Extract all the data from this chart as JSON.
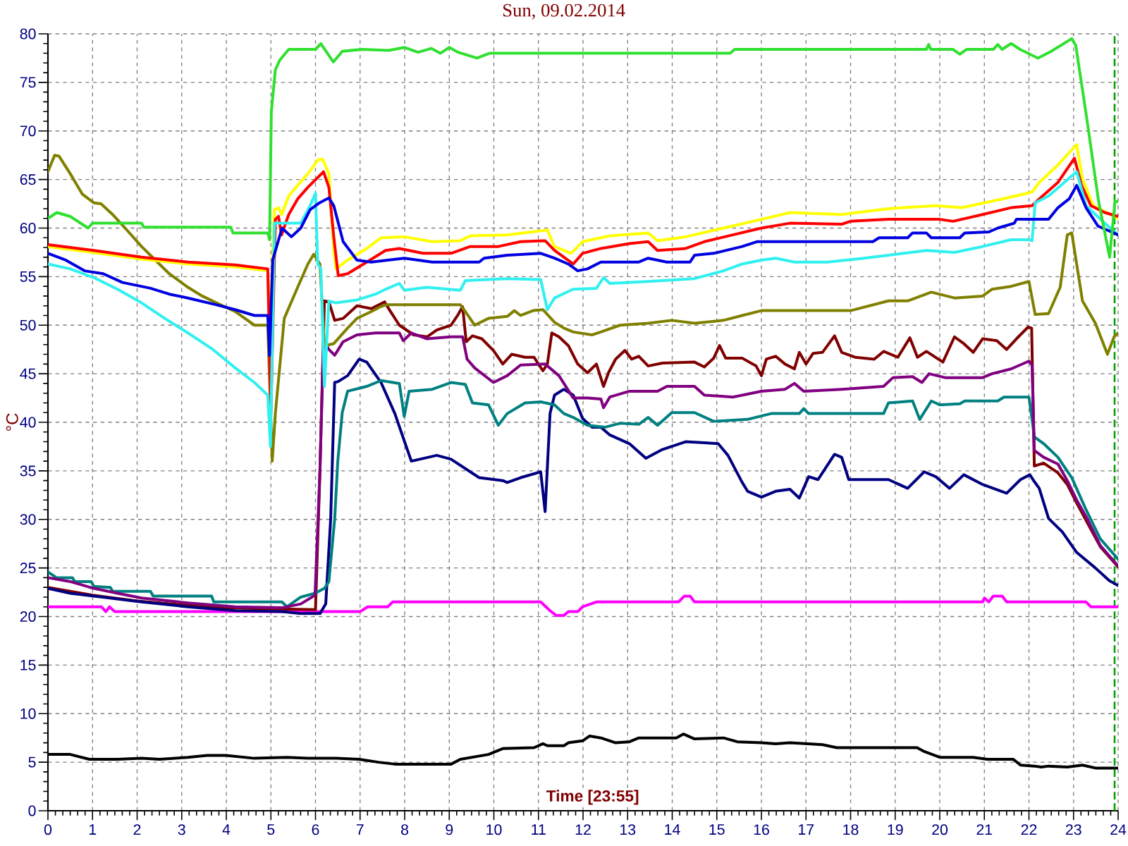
{
  "chart_data": {
    "type": "line",
    "title": "Sun, 09.02.2014",
    "xlabel": "Time [23:55]",
    "ylabel": "°C",
    "xlim": [
      0,
      24
    ],
    "ylim": [
      0,
      80
    ],
    "xticks": [
      0,
      1,
      2,
      3,
      4,
      5,
      6,
      7,
      8,
      9,
      10,
      11,
      12,
      13,
      14,
      15,
      16,
      17,
      18,
      19,
      20,
      21,
      22,
      23,
      24
    ],
    "yticks": [
      0,
      5,
      10,
      15,
      20,
      25,
      30,
      35,
      40,
      45,
      50,
      55,
      60,
      65,
      70,
      75,
      80
    ],
    "grid": true,
    "marker": "none",
    "line_style": "solid",
    "ref_lines": [
      {
        "axis": "x",
        "value": 23.92,
        "color": "#00a000",
        "line_style": "dashed"
      }
    ],
    "series": [
      {
        "color": "#000000",
        "x": [
          0,
          0.5,
          0.93,
          1.56,
          2.1,
          2.5,
          3.14,
          3.57,
          3.99,
          4.63,
          5.36,
          5.83,
          6.46,
          6.98,
          7.41,
          7.78,
          9.04,
          9.25,
          9.88,
          10.2,
          10.9,
          11.1,
          11.2,
          11.57,
          11.67,
          11.99,
          12.15,
          12.4,
          12.73,
          13.04,
          13.25,
          14.09,
          14.25,
          14.5,
          15.15,
          15.46,
          16.0,
          16.32,
          16.64,
          17.37,
          17.69,
          19.49,
          19.65,
          20.0,
          20.75,
          21.07,
          21.65,
          21.81,
          22.12,
          22.28,
          22.44,
          22.86,
          23.2,
          23.49,
          24.0
        ],
        "values": [
          5.8,
          5.8,
          5.3,
          5.3,
          5.4,
          5.3,
          5.5,
          5.7,
          5.7,
          5.4,
          5.5,
          5.4,
          5.4,
          5.3,
          5.0,
          4.8,
          4.8,
          5.3,
          5.8,
          6.4,
          6.5,
          6.9,
          6.7,
          6.7,
          7.0,
          7.2,
          7.7,
          7.5,
          7.0,
          7.1,
          7.5,
          7.5,
          7.9,
          7.4,
          7.5,
          7.1,
          7.0,
          6.9,
          7.0,
          6.8,
          6.5,
          6.5,
          6.1,
          5.5,
          5.5,
          5.3,
          5.3,
          4.7,
          4.6,
          4.5,
          4.6,
          4.5,
          4.7,
          4.4,
          4.4
        ]
      },
      {
        "color": "#ff00ff",
        "x": [
          0,
          1.2,
          1.3,
          1.38,
          1.5,
          7.0,
          7.17,
          7.62,
          7.73,
          11.05,
          11.26,
          11.4,
          11.57,
          11.67,
          11.88,
          11.99,
          12.3,
          14.14,
          14.27,
          14.4,
          14.5,
          20.96,
          21.0,
          21.1,
          21.2,
          21.4,
          21.5,
          23.28,
          23.39,
          24.0
        ],
        "values": [
          21.0,
          21.0,
          20.5,
          21.0,
          20.5,
          20.5,
          21.0,
          21.0,
          21.5,
          21.5,
          20.6,
          20.1,
          20.1,
          20.5,
          20.5,
          21.0,
          21.5,
          21.5,
          22.1,
          22.1,
          21.5,
          21.5,
          21.9,
          21.5,
          22.1,
          22.1,
          21.5,
          21.5,
          21.0,
          21.0
        ]
      },
      {
        "color": "#800000",
        "x": [
          0,
          1.0,
          2.0,
          3.0,
          4.0,
          5.0,
          6.0,
          6.1,
          6.2,
          6.3,
          6.43,
          6.62,
          6.93,
          7.25,
          7.55,
          7.67,
          7.88,
          8.2,
          8.5,
          8.72,
          9.04,
          9.2,
          9.3,
          9.38,
          9.52,
          9.73,
          9.99,
          10.2,
          10.4,
          10.7,
          10.9,
          11.1,
          11.2,
          11.3,
          11.46,
          11.67,
          11.88,
          12.1,
          12.3,
          12.46,
          12.57,
          12.73,
          12.94,
          13.09,
          13.25,
          13.46,
          13.78,
          14.5,
          14.72,
          14.93,
          15.06,
          15.2,
          15.57,
          15.88,
          16.0,
          16.11,
          16.32,
          16.53,
          16.74,
          16.85,
          17.0,
          17.16,
          17.37,
          17.64,
          17.8,
          18.1,
          18.53,
          18.74,
          19.06,
          19.33,
          19.5,
          19.7,
          20.07,
          20.33,
          20.54,
          20.75,
          20.96,
          21.28,
          21.5,
          21.72,
          21.98,
          22.06,
          22.12,
          22.33,
          22.65,
          22.86,
          23.07,
          23.28,
          23.6,
          24.0
        ],
        "values": [
          23.0,
          22.2,
          21.6,
          21.2,
          20.9,
          20.8,
          20.7,
          35.0,
          52.5,
          52.4,
          50.5,
          50.7,
          52.0,
          51.7,
          52.4,
          51.5,
          50.0,
          49.0,
          48.8,
          49.5,
          50.0,
          51.1,
          51.9,
          48.3,
          48.9,
          48.6,
          47.4,
          46.0,
          47.0,
          46.7,
          46.7,
          45.3,
          46.0,
          49.2,
          48.8,
          47.9,
          46.0,
          45.1,
          46.0,
          43.7,
          45.1,
          46.5,
          47.4,
          46.5,
          46.8,
          45.8,
          46.1,
          46.2,
          45.7,
          46.6,
          47.9,
          46.6,
          46.6,
          45.8,
          44.8,
          46.5,
          46.8,
          46.0,
          45.5,
          47.2,
          46.0,
          47.1,
          47.2,
          48.9,
          47.2,
          46.7,
          46.5,
          47.3,
          46.7,
          48.7,
          46.7,
          47.3,
          46.2,
          48.8,
          48.1,
          47.2,
          48.6,
          48.4,
          47.5,
          48.6,
          49.8,
          49.7,
          35.5,
          35.8,
          34.8,
          33.6,
          31.7,
          29.9,
          27.2,
          25.1
        ]
      },
      {
        "color": "#000080",
        "x": [
          0,
          0.5,
          1.03,
          2.1,
          3.14,
          4.2,
          5.25,
          5.67,
          6.1,
          6.23,
          6.34,
          6.43,
          6.51,
          6.72,
          6.98,
          7.15,
          7.47,
          7.78,
          7.99,
          8.15,
          8.72,
          9.04,
          9.67,
          10.2,
          10.3,
          10.6,
          11.05,
          11.15,
          11.26,
          11.36,
          11.57,
          11.78,
          11.99,
          12.2,
          12.4,
          12.6,
          13.04,
          13.41,
          13.78,
          14.3,
          14.72,
          15.03,
          15.25,
          15.57,
          15.69,
          16.0,
          16.32,
          16.64,
          16.85,
          17.06,
          17.27,
          17.64,
          17.8,
          17.96,
          18.85,
          19.28,
          19.65,
          19.91,
          20.22,
          20.54,
          20.96,
          21.5,
          21.81,
          22.02,
          22.12,
          22.23,
          22.44,
          22.75,
          23.07,
          23.49,
          23.8,
          24.0
        ],
        "values": [
          22.9,
          22.4,
          22.1,
          21.5,
          21.0,
          20.6,
          20.5,
          20.3,
          20.3,
          21.3,
          30.0,
          44.1,
          44.2,
          44.8,
          46.5,
          46.2,
          44.1,
          40.9,
          38.1,
          36.0,
          36.6,
          36.2,
          34.3,
          34.0,
          33.8,
          34.3,
          34.9,
          30.8,
          40.9,
          42.8,
          43.4,
          42.8,
          40.4,
          39.5,
          39.5,
          38.7,
          37.8,
          36.3,
          37.2,
          38.0,
          37.9,
          37.8,
          36.6,
          33.8,
          32.9,
          32.3,
          32.9,
          33.1,
          32.2,
          34.4,
          34.1,
          36.7,
          36.4,
          34.1,
          34.1,
          33.2,
          34.9,
          34.4,
          33.2,
          34.6,
          33.6,
          32.7,
          34.1,
          34.6,
          33.9,
          33.2,
          30.1,
          28.7,
          26.6,
          25.0,
          23.7,
          23.2
        ]
      },
      {
        "color": "#008080",
        "x": [
          0,
          0.19,
          0.55,
          0.6,
          0.97,
          1.03,
          1.4,
          1.45,
          2.3,
          2.36,
          3.67,
          3.72,
          5.25,
          5.36,
          5.67,
          5.99,
          6.2,
          6.3,
          6.43,
          6.5,
          6.6,
          6.72,
          7.15,
          7.47,
          7.88,
          7.99,
          8.1,
          8.62,
          9.04,
          9.36,
          9.52,
          9.88,
          10.1,
          10.3,
          10.7,
          11.05,
          11.36,
          11.57,
          11.78,
          12.1,
          12.5,
          12.83,
          13.25,
          13.46,
          13.67,
          13.99,
          14.5,
          14.93,
          15.69,
          16.22,
          16.85,
          16.95,
          17.06,
          18.74,
          18.85,
          19.39,
          19.55,
          19.81,
          20.0,
          20.45,
          20.56,
          21.3,
          21.44,
          22.0,
          22.07,
          22.12,
          22.33,
          22.65,
          22.96,
          23.28,
          23.6,
          24.0
        ],
        "values": [
          24.6,
          24.0,
          24.0,
          23.6,
          23.6,
          23.1,
          23.0,
          22.6,
          22.6,
          22.1,
          22.1,
          21.5,
          21.5,
          21.0,
          22.0,
          22.4,
          22.9,
          23.6,
          30.0,
          36.0,
          41.0,
          43.2,
          43.7,
          44.3,
          44.0,
          40.6,
          43.2,
          43.4,
          44.1,
          43.9,
          42.0,
          41.8,
          39.7,
          40.9,
          42.0,
          42.1,
          41.8,
          40.9,
          40.5,
          39.7,
          39.5,
          39.9,
          39.8,
          40.5,
          39.7,
          41.0,
          41.0,
          40.1,
          40.3,
          40.9,
          40.9,
          41.4,
          40.9,
          40.9,
          42.0,
          42.2,
          40.3,
          42.2,
          41.8,
          41.9,
          42.2,
          42.2,
          42.6,
          42.6,
          40.3,
          38.5,
          37.8,
          36.4,
          34.3,
          31.0,
          28.0,
          25.9
        ]
      },
      {
        "color": "#800080",
        "x": [
          0,
          0.5,
          1.03,
          1.56,
          2.1,
          3.14,
          4.2,
          5.25,
          5.67,
          5.99,
          6.1,
          6.18,
          6.3,
          6.43,
          6.62,
          6.93,
          7.35,
          7.88,
          7.97,
          8.15,
          8.5,
          9.04,
          9.3,
          9.4,
          9.57,
          9.99,
          10.3,
          10.6,
          11.15,
          11.46,
          11.78,
          12.1,
          12.4,
          12.46,
          12.6,
          13.04,
          13.67,
          13.88,
          14.5,
          14.72,
          15.36,
          16.0,
          16.53,
          16.74,
          16.95,
          17.8,
          18.74,
          18.95,
          19.39,
          19.6,
          19.76,
          20.12,
          20.96,
          21.17,
          21.6,
          22.0,
          22.07,
          22.12,
          22.33,
          22.65,
          22.86,
          23.07,
          23.28,
          23.6,
          24.0
        ],
        "values": [
          24.0,
          23.6,
          22.9,
          22.4,
          21.9,
          21.4,
          21.0,
          20.9,
          21.3,
          22.2,
          35.0,
          48.5,
          47.5,
          46.9,
          48.3,
          49.0,
          49.2,
          49.2,
          48.4,
          49.2,
          48.6,
          48.8,
          48.8,
          46.5,
          45.6,
          44.1,
          44.8,
          45.9,
          46.0,
          44.8,
          42.5,
          42.5,
          42.4,
          41.5,
          42.6,
          43.2,
          43.2,
          43.7,
          43.7,
          42.8,
          42.6,
          43.2,
          43.4,
          44.0,
          43.2,
          43.4,
          43.7,
          44.6,
          44.7,
          44.1,
          45.0,
          44.6,
          44.6,
          45.0,
          45.5,
          46.3,
          45.9,
          37.1,
          36.4,
          35.7,
          34.0,
          32.0,
          30.3,
          27.3,
          25.2
        ]
      },
      {
        "color": "#808000",
        "x": [
          0,
          0.15,
          0.25,
          0.5,
          0.77,
          1.03,
          1.19,
          1.45,
          1.77,
          2.1,
          2.41,
          2.72,
          3.14,
          3.46,
          3.78,
          4.2,
          4.63,
          4.93,
          5.03,
          5.1,
          5.3,
          5.6,
          5.83,
          5.96,
          6.1,
          6.2,
          6.41,
          6.72,
          6.93,
          7.25,
          7.46,
          7.57,
          9.25,
          9.36,
          9.57,
          9.88,
          10.3,
          10.46,
          10.6,
          10.88,
          11.1,
          11.36,
          11.57,
          11.78,
          12.2,
          12.4,
          12.83,
          13.46,
          13.99,
          14.5,
          15.15,
          15.57,
          16.0,
          18.0,
          18.85,
          19.28,
          19.81,
          20.33,
          20.96,
          21.17,
          21.6,
          22.0,
          22.14,
          22.44,
          22.7,
          22.86,
          22.96,
          23.07,
          23.2,
          23.49,
          23.76,
          23.91,
          24.0
        ],
        "values": [
          65.8,
          67.5,
          67.4,
          65.6,
          63.5,
          62.6,
          62.5,
          61.4,
          59.8,
          58.1,
          56.7,
          55.3,
          53.9,
          53.0,
          52.3,
          51.4,
          50.0,
          50.0,
          36.0,
          40.9,
          50.7,
          53.9,
          56.3,
          57.3,
          56.3,
          47.9,
          48.1,
          49.7,
          50.7,
          51.4,
          51.9,
          52.1,
          52.1,
          51.4,
          50.0,
          50.7,
          50.9,
          51.5,
          51.0,
          51.5,
          51.6,
          50.3,
          49.7,
          49.3,
          49.0,
          49.3,
          50.0,
          50.2,
          50.5,
          50.2,
          50.5,
          51.0,
          51.5,
          51.5,
          52.5,
          52.5,
          53.4,
          52.8,
          53.0,
          53.7,
          54.0,
          54.5,
          51.1,
          51.2,
          53.9,
          59.3,
          59.5,
          56.3,
          52.5,
          50.2,
          47.0,
          48.8,
          49.2
        ]
      },
      {
        "color": "#ffff00",
        "x": [
          0,
          1.0,
          2.1,
          3.14,
          4.2,
          4.93,
          4.98,
          5.08,
          5.17,
          5.24,
          5.4,
          5.6,
          5.83,
          6.05,
          6.16,
          6.3,
          6.41,
          6.46,
          6.72,
          7.15,
          7.47,
          7.99,
          8.62,
          9.25,
          9.47,
          10.3,
          11.2,
          11.36,
          11.73,
          11.99,
          12.6,
          13.46,
          13.67,
          14.3,
          15.15,
          16.0,
          16.64,
          17.8,
          18.85,
          19.9,
          20.5,
          21.4,
          22.07,
          22.23,
          22.65,
          23.07,
          23.2,
          23.44,
          24.0
        ],
        "values": [
          58.1,
          57.5,
          56.8,
          56.3,
          56.0,
          55.6,
          50.0,
          61.9,
          62.1,
          61.4,
          63.3,
          64.4,
          65.6,
          67.0,
          67.1,
          65.6,
          57.7,
          55.8,
          56.7,
          57.9,
          59.0,
          59.1,
          58.6,
          58.7,
          59.2,
          59.3,
          59.8,
          58.1,
          57.4,
          58.6,
          59.2,
          59.5,
          58.7,
          59.1,
          60.0,
          60.9,
          61.6,
          61.4,
          62.0,
          62.3,
          62.1,
          63.0,
          63.7,
          64.7,
          66.5,
          68.6,
          65.1,
          62.3,
          61.0
        ]
      },
      {
        "color": "#ff0000",
        "x": [
          0,
          1.03,
          2.1,
          3.14,
          4.2,
          4.93,
          5.0,
          5.1,
          5.17,
          5.24,
          5.4,
          5.6,
          5.83,
          6.18,
          6.3,
          6.41,
          6.51,
          6.72,
          7.15,
          7.57,
          7.88,
          8.41,
          9.04,
          9.47,
          10.1,
          10.6,
          11.15,
          11.36,
          11.78,
          11.99,
          12.4,
          13.04,
          13.46,
          13.67,
          14.3,
          14.72,
          15.36,
          16.0,
          16.64,
          17.8,
          18.0,
          18.85,
          20.0,
          20.3,
          20.96,
          21.6,
          22.07,
          22.23,
          22.65,
          23.02,
          23.18,
          23.39,
          23.7,
          24.0
        ],
        "values": [
          58.3,
          57.7,
          57.0,
          56.5,
          56.2,
          55.8,
          40.9,
          60.9,
          61.2,
          59.3,
          61.4,
          63.0,
          64.2,
          65.8,
          64.2,
          59.1,
          55.1,
          55.3,
          56.5,
          57.7,
          57.9,
          57.4,
          57.4,
          58.1,
          58.1,
          58.6,
          58.7,
          57.7,
          56.3,
          57.4,
          57.9,
          58.4,
          58.6,
          57.7,
          57.9,
          58.6,
          59.3,
          60.0,
          60.5,
          60.4,
          60.7,
          60.9,
          60.9,
          60.7,
          61.4,
          62.1,
          62.3,
          63.0,
          64.7,
          67.2,
          64.4,
          62.3,
          61.6,
          61.2
        ]
      },
      {
        "color": "#30f0f0",
        "x": [
          0,
          0.5,
          1.03,
          1.56,
          2.1,
          2.62,
          3.14,
          3.67,
          4.2,
          4.63,
          4.93,
          4.99,
          5.08,
          5.67,
          5.88,
          6.0,
          6.05,
          6.12,
          6.2,
          6.3,
          6.46,
          6.93,
          7.35,
          7.57,
          7.88,
          7.99,
          8.5,
          9.25,
          9.36,
          10.3,
          11.05,
          11.2,
          11.36,
          11.78,
          12.3,
          12.46,
          12.6,
          13.46,
          14.5,
          15.15,
          15.57,
          16.0,
          16.32,
          16.74,
          17.48,
          18.3,
          18.85,
          19.7,
          20.33,
          20.96,
          21.6,
          22.0,
          22.07,
          22.14,
          22.44,
          23.07,
          23.28,
          23.7,
          24.0
        ],
        "values": [
          56.3,
          55.8,
          54.9,
          53.7,
          52.3,
          50.7,
          49.2,
          47.6,
          45.6,
          44.1,
          42.8,
          37.5,
          60.5,
          60.5,
          62.3,
          63.6,
          56.3,
          55.8,
          43.7,
          52.5,
          52.3,
          52.6,
          53.2,
          53.7,
          54.3,
          53.6,
          53.9,
          53.6,
          54.6,
          54.8,
          54.7,
          51.6,
          52.8,
          53.7,
          53.8,
          54.9,
          54.3,
          54.5,
          54.8,
          55.6,
          56.3,
          56.7,
          56.9,
          56.5,
          56.5,
          56.9,
          57.2,
          57.7,
          57.5,
          58.1,
          58.8,
          58.8,
          58.7,
          62.6,
          63.3,
          65.8,
          62.3,
          60.5,
          59.3
        ]
      },
      {
        "color": "#0000e0",
        "x": [
          0,
          0.4,
          0.82,
          1.24,
          1.67,
          2.3,
          2.72,
          3.14,
          3.78,
          4.2,
          4.63,
          4.93,
          4.97,
          5.04,
          5.25,
          5.46,
          5.67,
          5.88,
          6.09,
          6.3,
          6.41,
          6.62,
          6.93,
          7.25,
          7.99,
          8.62,
          9.67,
          9.78,
          10.3,
          11.05,
          11.36,
          11.67,
          11.88,
          12.1,
          12.4,
          13.25,
          13.46,
          13.88,
          14.4,
          14.5,
          14.93,
          15.57,
          15.9,
          18.5,
          18.64,
          19.28,
          19.39,
          19.7,
          19.81,
          20.45,
          20.56,
          21.1,
          21.3,
          21.67,
          21.72,
          22.44,
          22.65,
          22.9,
          23.07,
          23.28,
          23.55,
          24.0
        ],
        "values": [
          57.4,
          56.7,
          55.6,
          55.3,
          54.4,
          53.8,
          53.2,
          52.8,
          52.1,
          51.6,
          51.0,
          51.0,
          46.9,
          56.7,
          60.0,
          59.1,
          60.0,
          61.9,
          62.6,
          63.1,
          62.3,
          58.6,
          56.7,
          56.5,
          56.9,
          56.5,
          56.5,
          56.9,
          57.2,
          57.4,
          56.9,
          56.3,
          55.6,
          55.8,
          56.5,
          56.5,
          56.9,
          56.5,
          56.5,
          57.2,
          57.4,
          58.1,
          58.6,
          58.6,
          59.0,
          59.0,
          59.5,
          59.5,
          59.0,
          59.0,
          59.5,
          59.6,
          60.0,
          60.5,
          60.9,
          60.9,
          62.1,
          63.0,
          64.4,
          62.1,
          60.2,
          59.3
        ]
      },
      {
        "color": "#30e030",
        "x": [
          0,
          0.2,
          0.5,
          0.9,
          1.0,
          2.1,
          2.15,
          4.1,
          4.15,
          4.93,
          4.97,
          5.01,
          5.1,
          5.2,
          5.4,
          6.0,
          6.12,
          6.4,
          6.6,
          7.04,
          7.64,
          8.0,
          8.3,
          8.6,
          8.8,
          9.0,
          9.2,
          9.62,
          9.9,
          15.3,
          15.4,
          19.7,
          19.75,
          19.8,
          20.3,
          20.45,
          20.6,
          21.2,
          21.3,
          21.4,
          21.6,
          21.8,
          22.2,
          22.5,
          22.96,
          23.05,
          23.3,
          23.56,
          23.81,
          23.93,
          24.0
        ],
        "values": [
          61.0,
          61.6,
          61.2,
          60.0,
          60.5,
          60.5,
          60.1,
          60.1,
          59.5,
          59.5,
          58.8,
          72.0,
          76.3,
          77.3,
          78.4,
          78.4,
          79.0,
          77.1,
          78.2,
          78.4,
          78.3,
          78.6,
          78.1,
          78.5,
          78.0,
          78.6,
          78.1,
          77.5,
          78.0,
          78.0,
          78.4,
          78.4,
          78.9,
          78.4,
          78.4,
          77.9,
          78.4,
          78.4,
          78.9,
          78.4,
          79.0,
          78.4,
          77.5,
          78.2,
          79.5,
          78.8,
          71.2,
          62.8,
          57.0,
          62.8,
          62.7
        ]
      }
    ]
  }
}
